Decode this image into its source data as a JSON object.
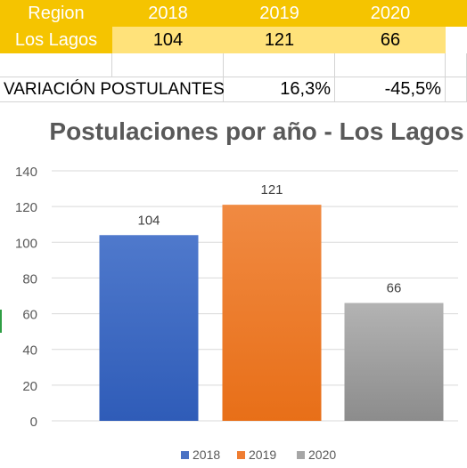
{
  "table": {
    "header": [
      "Region",
      "2018",
      "2019",
      "2020"
    ],
    "row": [
      "Los Lagos",
      "104",
      "121",
      "66"
    ],
    "variation": {
      "label": "VARIACIÓN POSTULANTES",
      "v2019": "16,3%",
      "v2020": "-45,5%"
    }
  },
  "colors": {
    "header_fill": "#f5c400",
    "value_fill": "#ffe27a",
    "bar_2018": "#4a72c4",
    "bar_2019": "#ef7d32",
    "bar_2020": "#a6a6a6"
  },
  "chart_data": {
    "type": "bar",
    "title": "Postulaciones por año - Los Lagos",
    "xlabel": "",
    "ylabel": "",
    "ylim": [
      0,
      140
    ],
    "yticks": [
      "0",
      "20",
      "40",
      "60",
      "80",
      "100",
      "120",
      "140"
    ],
    "grid": true,
    "legend_position": "bottom",
    "series": [
      {
        "name": "2018",
        "values": [
          104
        ],
        "label": "104",
        "color": "#4a72c4"
      },
      {
        "name": "2019",
        "values": [
          121
        ],
        "label": "121",
        "color": "#ef7d32"
      },
      {
        "name": "2020",
        "values": [
          66
        ],
        "label": "66",
        "color": "#a6a6a6"
      }
    ]
  }
}
